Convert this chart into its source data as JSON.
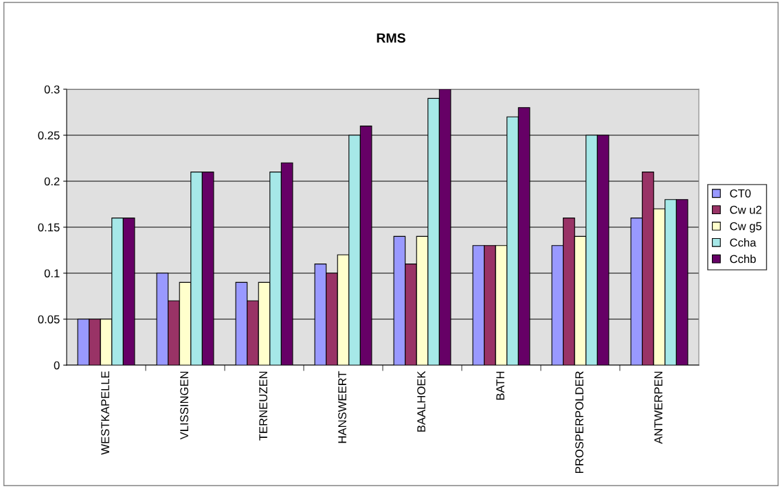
{
  "chart_data": {
    "type": "bar",
    "title": "RMS",
    "categories": [
      "WESTKAPELLE",
      "VLISSINGEN",
      "TERNEUZEN",
      "HANSWEERT",
      "BAALHOEK",
      "BATH",
      "PROSPERPOLDER",
      "ANTWERPEN"
    ],
    "series": [
      {
        "name": "CT0",
        "color": "#9999ff",
        "values": [
          0.05,
          0.1,
          0.09,
          0.11,
          0.14,
          0.13,
          0.13,
          0.16
        ]
      },
      {
        "name": "Cw u2",
        "color": "#993366",
        "values": [
          0.05,
          0.07,
          0.07,
          0.1,
          0.11,
          0.13,
          0.16,
          0.21
        ]
      },
      {
        "name": "Cw g5",
        "color": "#ffffcc",
        "values": [
          0.05,
          0.09,
          0.09,
          0.12,
          0.14,
          0.13,
          0.14,
          0.17
        ]
      },
      {
        "name": "Ccha",
        "color": "#a6e8e8",
        "values": [
          0.16,
          0.21,
          0.21,
          0.25,
          0.29,
          0.27,
          0.25,
          0.18
        ]
      },
      {
        "name": "Cchb",
        "color": "#660066",
        "values": [
          0.16,
          0.21,
          0.22,
          0.26,
          0.3,
          0.28,
          0.25,
          0.18
        ]
      }
    ],
    "ylim": [
      0,
      0.3
    ],
    "yticks": [
      0,
      0.05,
      0.1,
      0.15,
      0.2,
      0.25,
      0.3
    ],
    "grid": "y",
    "legend": "right"
  }
}
